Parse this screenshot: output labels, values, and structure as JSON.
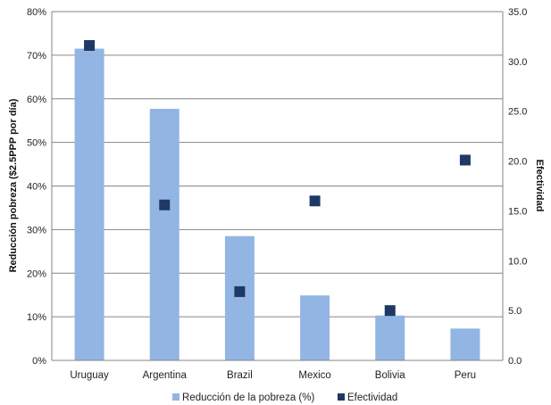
{
  "chart_data": {
    "type": "bar",
    "categories": [
      "Uruguay",
      "Argentina",
      "Brazil",
      "Mexico",
      "Bolivia",
      "Peru"
    ],
    "series": [
      {
        "name": "Reducción de la pobreza (%)",
        "kind": "bar",
        "axis": "left",
        "color": "#93B5E3",
        "values": [
          71.5,
          57.7,
          28.5,
          14.9,
          10.3,
          7.3
        ]
      },
      {
        "name": "Efectividad",
        "kind": "scatter",
        "marker": "square",
        "axis": "right",
        "color": "#1F3864",
        "values": [
          31.6,
          15.6,
          6.9,
          16.0,
          5.0,
          20.1
        ]
      }
    ],
    "ylabel": "Reducción pobreza ($2.5PPP por día)",
    "y2label": "Efectividad",
    "ylim": [
      0,
      80
    ],
    "y2lim": [
      0,
      35
    ],
    "yticks": [
      "0%",
      "10%",
      "20%",
      "30%",
      "40%",
      "50%",
      "60%",
      "70%",
      "80%"
    ],
    "y2ticks": [
      "0.0",
      "5.0",
      "10.0",
      "15.0",
      "20.0",
      "25.0",
      "30.0",
      "35.0"
    ],
    "grid": true,
    "legend": "bottom"
  }
}
